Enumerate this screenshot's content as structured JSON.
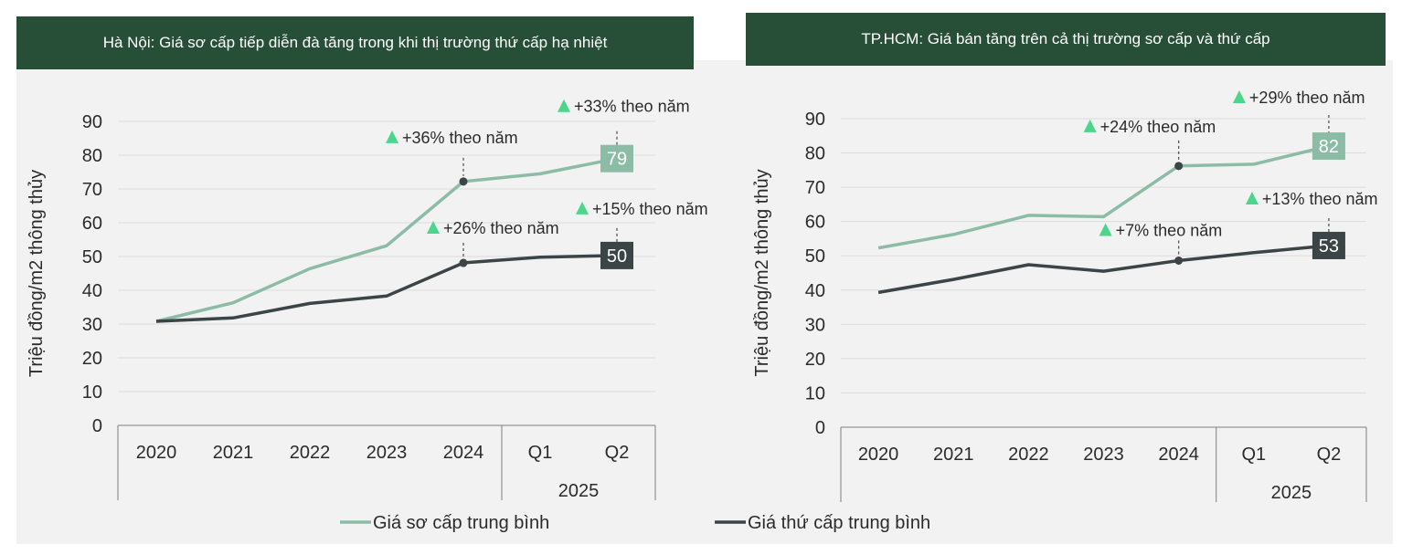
{
  "legend": [
    {
      "name": "Giá sơ cấp trung bình",
      "color": "#8dbca6"
    },
    {
      "name": "Giá thứ cấp trung bình",
      "color": "#3b4446"
    }
  ],
  "chart_data": [
    {
      "type": "line",
      "title": "Hà Nội: Giá sơ cấp tiếp diễn đà tăng trong khi thị trường thứ cấp hạ nhiệt",
      "ylabel": "Triệu đồng/m2 thông thủy",
      "ylim": [
        0,
        90
      ],
      "yticks": [
        "0",
        "10",
        "20",
        "30",
        "40",
        "50",
        "60",
        "70",
        "80",
        "90"
      ],
      "categories": [
        "2020",
        "2021",
        "2022",
        "2023",
        "2024",
        "Q1",
        "Q2"
      ],
      "group_label": "2025",
      "grid": true,
      "series": [
        {
          "name": "Giá sơ cấp trung bình",
          "color": "#8dbca6",
          "values": [
            30.8,
            36.3,
            46.4,
            53.2,
            72.2,
            74.5,
            79
          ]
        },
        {
          "name": "Giá thứ cấp trung bình",
          "color": "#3b4446",
          "values": [
            30.8,
            31.8,
            36.1,
            38.3,
            48.1,
            49.8,
            50.3
          ]
        }
      ],
      "end_labels": [
        {
          "series": 0,
          "text": "79"
        },
        {
          "series": 1,
          "text": "50"
        }
      ],
      "annotations": [
        {
          "text": "+36% theo năm",
          "series": 0,
          "index": 4,
          "marker": true
        },
        {
          "text": "+33% theo năm",
          "series": 0,
          "index": 6,
          "marker": false
        },
        {
          "text": "+26% theo năm",
          "series": 1,
          "index": 4,
          "marker": true
        },
        {
          "text": "+15% theo năm",
          "series": 1,
          "index": 6,
          "marker": false
        }
      ]
    },
    {
      "type": "line",
      "title": "TP.HCM: Giá bán tăng trên cả thị trường sơ cấp và thứ cấp",
      "ylabel": "Triệu đồng/m2 thông thủy",
      "ylim": [
        0,
        90
      ],
      "yticks": [
        "0",
        "10",
        "20",
        "30",
        "40",
        "50",
        "60",
        "70",
        "80",
        "90"
      ],
      "categories": [
        "2020",
        "2021",
        "2022",
        "2023",
        "2024",
        "Q1",
        "Q2"
      ],
      "group_label": "2025",
      "grid": true,
      "series": [
        {
          "name": "Giá sơ cấp trung bình",
          "color": "#8dbca6",
          "values": [
            52.3,
            56.2,
            61.8,
            61.4,
            76.2,
            76.7,
            82
          ]
        },
        {
          "name": "Giá thứ cấp trung bình",
          "color": "#3b4446",
          "values": [
            39.3,
            43.1,
            47.4,
            45.5,
            48.6,
            50.9,
            53
          ]
        }
      ],
      "end_labels": [
        {
          "series": 0,
          "text": "82"
        },
        {
          "series": 1,
          "text": "53"
        }
      ],
      "annotations": [
        {
          "text": "+24% theo năm",
          "series": 0,
          "index": 4,
          "marker": true
        },
        {
          "text": "+29% theo năm",
          "series": 0,
          "index": 6,
          "marker": false
        },
        {
          "text": "+7% theo năm",
          "series": 1,
          "index": 4,
          "marker": true
        },
        {
          "text": "+13% theo năm",
          "series": 1,
          "index": 6,
          "marker": false
        }
      ]
    }
  ]
}
